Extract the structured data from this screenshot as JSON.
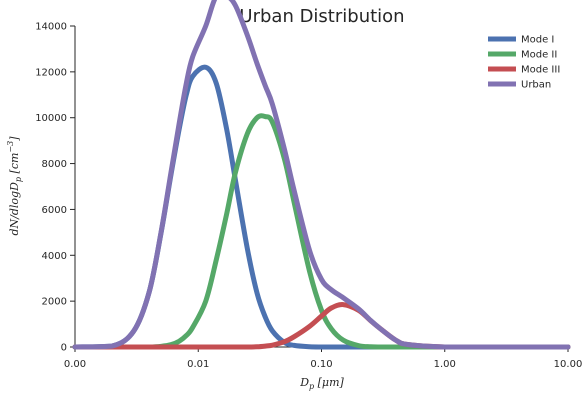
{
  "chart_data": {
    "type": "line",
    "title": "Urban Distribution",
    "xlabel": "D_p [μm]",
    "ylabel": "dN/dlogD_p [cm^-3]",
    "xscale": "log",
    "xlim": [
      0.001,
      10
    ],
    "ylim": [
      0,
      14000
    ],
    "xticks": [
      0.001,
      0.01,
      0.1,
      1,
      10
    ],
    "xtick_labels": [
      "0.00",
      "0.01",
      "0.10",
      "1.00",
      "10.00"
    ],
    "yticks": [
      0,
      2000,
      4000,
      6000,
      8000,
      10000,
      12000,
      14000
    ],
    "ytick_labels": [
      "0",
      "2000",
      "4000",
      "6000",
      "8000",
      "10000",
      "12000",
      "14000"
    ],
    "grid": false,
    "legend_position": "top-right",
    "x": [
      0.001,
      0.002,
      0.003,
      0.004,
      0.005,
      0.006,
      0.007,
      0.008,
      0.009,
      0.0115,
      0.014,
      0.017,
      0.02,
      0.025,
      0.03,
      0.035,
      0.04,
      0.05,
      0.06,
      0.08,
      0.1,
      0.12,
      0.15,
      0.2,
      0.25,
      0.3,
      0.4,
      0.5,
      1,
      2,
      5,
      10
    ],
    "series": [
      {
        "name": "Mode I",
        "color": "#4c72b0",
        "values": [
          0,
          40,
          700,
          2400,
          5000,
          7500,
          9500,
          11000,
          11800,
          12200,
          11500,
          9500,
          7300,
          4300,
          2350,
          1300,
          700,
          200,
          70,
          10,
          0,
          0,
          0,
          0,
          0,
          0,
          0,
          0,
          0,
          0,
          0,
          0
        ]
      },
      {
        "name": "Mode II",
        "color": "#55a868",
        "values": [
          0,
          0,
          0,
          0,
          30,
          100,
          250,
          500,
          850,
          2000,
          3800,
          5800,
          7600,
          9300,
          10000,
          10050,
          9800,
          8200,
          6300,
          3300,
          1600,
          800,
          300,
          60,
          10,
          0,
          0,
          0,
          0,
          0,
          0,
          0
        ]
      },
      {
        "name": "Mode III",
        "color": "#c44e52",
        "values": [
          0,
          0,
          0,
          0,
          0,
          0,
          0,
          0,
          0,
          0,
          0,
          0,
          0,
          0,
          10,
          40,
          80,
          230,
          450,
          900,
          1350,
          1700,
          1850,
          1600,
          1150,
          800,
          300,
          110,
          0,
          0,
          0,
          0
        ]
      },
      {
        "name": "Urban",
        "color": "#8172b2",
        "values": [
          0,
          40,
          700,
          2400,
          5030,
          7600,
          9750,
          11500,
          12650,
          14000,
          15300,
          15300,
          14900,
          13600,
          12360,
          11390,
          10580,
          8630,
          6820,
          4210,
          2950,
          2500,
          2150,
          1660,
          1160,
          800,
          300,
          110,
          0,
          0,
          0,
          0
        ]
      }
    ]
  }
}
